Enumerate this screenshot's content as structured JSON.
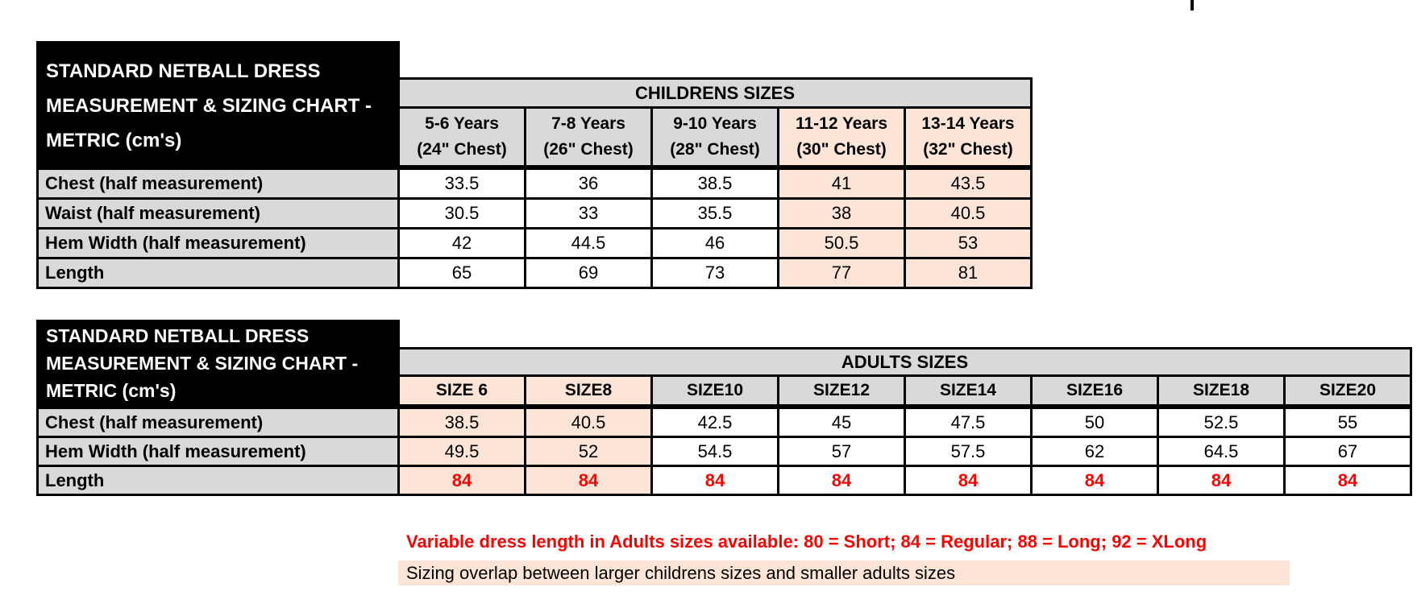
{
  "colors": {
    "header_fill": "#d9d9d9",
    "highlight_fill": "#fce4d6",
    "accent_red": "#ff0000",
    "grid_lines": "#000000",
    "title_block": "#000000"
  },
  "children_table": {
    "title_lines": [
      "STANDARD NETBALL DRESS",
      "MEASUREMENT & SIZING CHART -",
      "METRIC (cm's)"
    ],
    "banner": "CHILDRENS SIZES",
    "columns": [
      {
        "line1": "5-6 Years",
        "line2": "(24\" Chest)"
      },
      {
        "line1": "7-8 Years",
        "line2": "(26\" Chest)"
      },
      {
        "line1": "9-10 Years",
        "line2": "(28\" Chest)"
      },
      {
        "line1": "11-12 Years",
        "line2": "(30\" Chest)"
      },
      {
        "line1": "13-14 Years",
        "line2": "(32\" Chest)"
      }
    ],
    "rows": [
      {
        "label": "Chest (half measurement)",
        "values": [
          "33.5",
          "36",
          "38.5",
          "41",
          "43.5"
        ]
      },
      {
        "label": "Waist (half measurement)",
        "values": [
          "30.5",
          "33",
          "35.5",
          "38",
          "40.5"
        ]
      },
      {
        "label": "Hem Width (half measurement)",
        "values": [
          "42",
          "44.5",
          "46",
          "50.5",
          "53"
        ]
      },
      {
        "label": "Length",
        "values": [
          "65",
          "69",
          "73",
          "77",
          "81"
        ]
      }
    ]
  },
  "adults_table": {
    "title_lines": [
      "STANDARD NETBALL DRESS",
      "MEASUREMENT & SIZING CHART -",
      "METRIC (cm's)"
    ],
    "banner": "ADULTS SIZES",
    "columns": [
      "SIZE 6",
      "SIZE8",
      "SIZE10",
      "SIZE12",
      "SIZE14",
      "SIZE16",
      "SIZE18",
      "SIZE20"
    ],
    "rows": [
      {
        "label": "Chest (half measurement)",
        "values": [
          "38.5",
          "40.5",
          "42.5",
          "45",
          "47.5",
          "50",
          "52.5",
          "55"
        ]
      },
      {
        "label": "Hem Width (half measurement)",
        "values": [
          "49.5",
          "52",
          "54.5",
          "57",
          "57.5",
          "62",
          "64.5",
          "67"
        ]
      },
      {
        "label": "Length",
        "values": [
          "84",
          "84",
          "84",
          "84",
          "84",
          "84",
          "84",
          "84"
        ]
      }
    ]
  },
  "notes": {
    "variable_length": "Variable dress length in Adults sizes available: 80 = Short; 84 = Regular; 88 = Long; 92 = XLong",
    "sizing_overlap": "Sizing overlap between larger childrens sizes and smaller adults sizes"
  }
}
